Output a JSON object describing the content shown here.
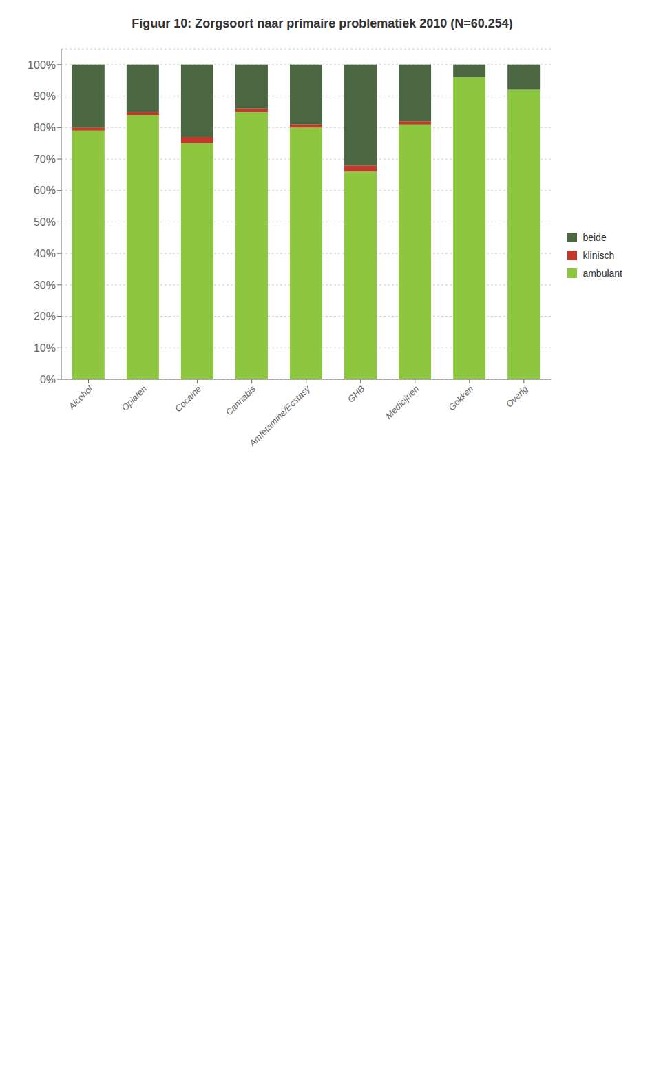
{
  "chart_data": {
    "type": "bar",
    "title": "Figuur 10: Zorgsoort naar primaire problematiek 2010 (N=60.254)",
    "categories": [
      "Alcohol",
      "Opiaten",
      "Cocaine",
      "Cannabis",
      "Amfetamine/Ecstasy",
      "GHB",
      "Medicijnen",
      "Gokken",
      "Overig"
    ],
    "series": [
      {
        "name": "ambulant",
        "color": "#8dc63f",
        "values": [
          79,
          84,
          75,
          85,
          80,
          66,
          81,
          96,
          92
        ]
      },
      {
        "name": "klinisch",
        "color": "#c0392b",
        "values": [
          1,
          1,
          2,
          1,
          1,
          2,
          1,
          0,
          0
        ]
      },
      {
        "name": "beide",
        "color": "#4a6741",
        "values": [
          20,
          15,
          23,
          14,
          19,
          32,
          18,
          4,
          8
        ]
      }
    ],
    "stacked": true,
    "ylim": [
      0,
      105
    ],
    "yticks": [
      {
        "value": 0,
        "label": "0%"
      },
      {
        "value": 10,
        "label": "10%"
      },
      {
        "value": 20,
        "label": "20%"
      },
      {
        "value": 30,
        "label": "30%"
      },
      {
        "value": 40,
        "label": "40%"
      },
      {
        "value": 50,
        "label": "50%"
      },
      {
        "value": 60,
        "label": "60%"
      },
      {
        "value": 70,
        "label": "70%"
      },
      {
        "value": 80,
        "label": "80%"
      },
      {
        "value": 90,
        "label": "90%"
      },
      {
        "value": 100,
        "label": "100%"
      }
    ],
    "grid": true,
    "legend": "right"
  }
}
